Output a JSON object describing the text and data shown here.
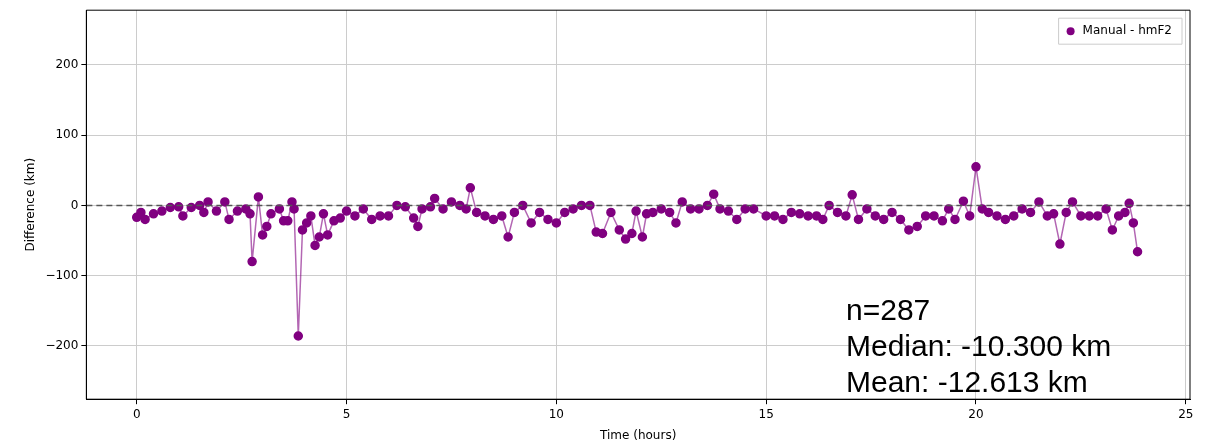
{
  "chart_data": {
    "type": "line",
    "xlabel": "Time (hours)",
    "ylabel": "Difference (km)",
    "xlim": [
      -1.2,
      25.1
    ],
    "xticks": [
      0,
      5,
      10,
      15,
      20,
      25
    ],
    "ylim": [
      -276,
      278
    ],
    "yticks": [
      -200,
      -100,
      0,
      100,
      200
    ],
    "grid": true,
    "legend": "top right",
    "marker": "circle",
    "line_style": "solid",
    "ref_lines": [
      {
        "axis": "y",
        "value": 0,
        "color": "#555555",
        "line_style": "dashed"
      }
    ],
    "annotations": [
      "n=287",
      "Median: -10.300 km",
      "Mean: -12.613 km"
    ],
    "series": [
      {
        "name": "Manual - hmF2",
        "color": "#800080",
        "x": [
          0,
          0.1,
          0.2,
          0.4,
          0.6,
          0.8,
          1.0,
          1.1,
          1.3,
          1.5,
          1.6,
          1.7,
          1.9,
          2.1,
          2.2,
          2.4,
          2.6,
          2.7,
          2.75,
          2.9,
          3.0,
          3.1,
          3.2,
          3.4,
          3.5,
          3.6,
          3.7,
          3.75,
          3.85,
          3.95,
          4.05,
          4.15,
          4.25,
          4.35,
          4.45,
          4.55,
          4.7,
          4.85,
          5.0,
          5.2,
          5.4,
          5.6,
          5.8,
          6.0,
          6.2,
          6.4,
          6.6,
          6.7,
          6.8,
          7.0,
          7.1,
          7.3,
          7.5,
          7.7,
          7.85,
          7.95,
          8.1,
          8.3,
          8.5,
          8.7,
          8.85,
          9.0,
          9.2,
          9.4,
          9.6,
          9.8,
          10.0,
          10.2,
          10.4,
          10.6,
          10.8,
          10.95,
          11.1,
          11.3,
          11.5,
          11.65,
          11.8,
          11.9,
          12.05,
          12.15,
          12.3,
          12.5,
          12.7,
          12.85,
          13.0,
          13.2,
          13.4,
          13.6,
          13.75,
          13.9,
          14.1,
          14.3,
          14.5,
          14.7,
          15.0,
          15.2,
          15.4,
          15.6,
          15.8,
          16.0,
          16.2,
          16.35,
          16.5,
          16.7,
          16.9,
          17.05,
          17.2,
          17.4,
          17.6,
          17.8,
          18.0,
          18.2,
          18.4,
          18.6,
          18.8,
          19.0,
          19.2,
          19.35,
          19.5,
          19.7,
          19.85,
          20.0,
          20.15,
          20.3,
          20.5,
          20.7,
          20.9,
          21.1,
          21.3,
          21.5,
          21.7,
          21.85,
          22.0,
          22.15,
          22.3,
          22.5,
          22.7,
          22.9,
          23.1,
          23.25,
          23.4,
          23.55,
          23.65,
          23.75,
          23.85
        ],
        "values": [
          -17,
          -10,
          -20,
          -12,
          -8,
          -3,
          -2,
          -15,
          -3,
          0,
          -10,
          5,
          -8,
          5,
          -20,
          -8,
          -5,
          -12,
          -80,
          12,
          -42,
          -30,
          -12,
          -5,
          -22,
          -22,
          5,
          -5,
          -186,
          -35,
          -25,
          -15,
          -57,
          -45,
          -12,
          -42,
          -22,
          -18,
          -8,
          -15,
          -5,
          -20,
          -15,
          -15,
          0,
          -2,
          -18,
          -30,
          -5,
          -2,
          10,
          -5,
          5,
          0,
          -5,
          25,
          -10,
          -15,
          -20,
          -15,
          -45,
          -10,
          0,
          -25,
          -10,
          -20,
          -25,
          -10,
          -5,
          0,
          0,
          -38,
          -40,
          -10,
          -35,
          -48,
          -40,
          -8,
          -45,
          -12,
          -10,
          -5,
          -10,
          -25,
          5,
          -5,
          -5,
          0,
          16,
          -5,
          -8,
          -20,
          -5,
          -5,
          -15,
          -15,
          -20,
          -10,
          -12,
          -15,
          -15,
          -20,
          0,
          -10,
          -15,
          15,
          -20,
          -5,
          -15,
          -20,
          -10,
          -20,
          -35,
          -30,
          -15,
          -15,
          -22,
          -5,
          -20,
          6,
          -15,
          55,
          -5,
          -10,
          -15,
          -20,
          -15,
          -5,
          -10,
          5,
          -15,
          -12,
          -55,
          -10,
          5,
          -15,
          -15,
          -15,
          -5,
          -35,
          -15,
          -10,
          3,
          -25,
          -66
        ]
      }
    ]
  }
}
